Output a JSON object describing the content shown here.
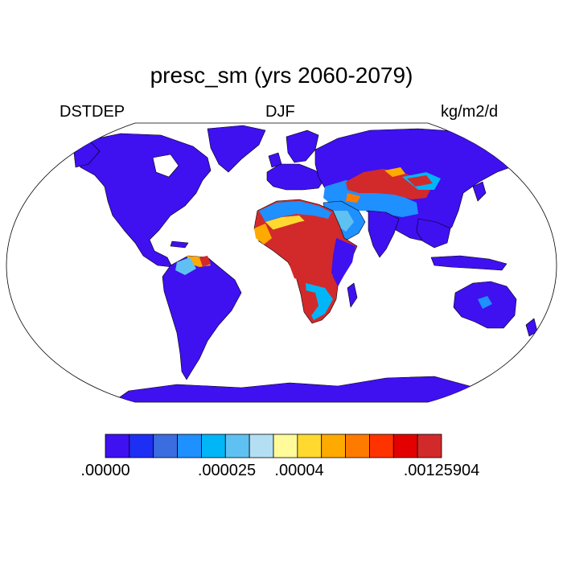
{
  "title": "presc_sm (yrs 2060-2079)",
  "left_label": "DSTDEP",
  "center_label": "DJF",
  "units": "kg/m2/d",
  "colorbar": {
    "colors": [
      "#3f10f0",
      "#1e2ff5",
      "#3b6ce0",
      "#1f90ff",
      "#00b6f7",
      "#5ec1f1",
      "#b4dff2",
      "#fffb9a",
      "#ffd930",
      "#ffaa00",
      "#ff7b00",
      "#ff3300",
      "#e30000",
      "#d22a2a"
    ],
    "labels": [
      ".00000",
      ".000025",
      ".00004",
      ".00125904"
    ]
  }
}
